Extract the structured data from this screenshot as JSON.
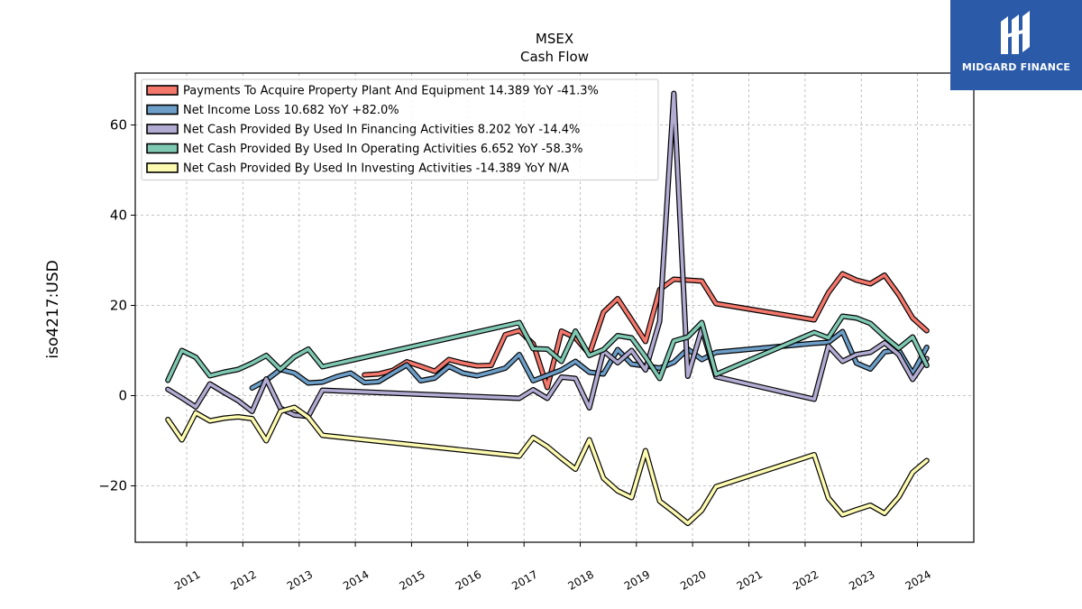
{
  "logo": {
    "text": "MIDGARD FINANCE",
    "icon": "midgard-mark-icon",
    "background": "#2a5aa8"
  },
  "chart_data": {
    "type": "line",
    "title": "MSEX",
    "subtitle": "Cash Flow",
    "ylabel": "iso4217:USD",
    "xlabel": "",
    "xlim": [
      "2010-02-01",
      "2025-01-01"
    ],
    "ylim": [
      -32.5,
      71.5
    ],
    "yticks": [
      -20,
      0,
      20,
      40,
      60
    ],
    "ytick_labels": [
      "−20",
      "0",
      "20",
      "40",
      "60"
    ],
    "xticks": [
      "2011-01-01",
      "2012-01-01",
      "2013-01-01",
      "2014-01-01",
      "2015-01-01",
      "2016-01-01",
      "2017-01-01",
      "2018-01-01",
      "2019-01-01",
      "2020-01-01",
      "2021-01-01",
      "2022-01-01",
      "2023-01-01",
      "2024-01-01"
    ],
    "xtick_labels": [
      "2011",
      "2012",
      "2013",
      "2014",
      "2015",
      "2016",
      "2017",
      "2018",
      "2019",
      "2020",
      "2021",
      "2022",
      "2023",
      "2024"
    ],
    "grid": true,
    "legend_position": "top-left",
    "series": [
      {
        "name": "Payments To Acquire Property Plant And Equipment  14.389 YoY -41.3%",
        "color": "#f4776c",
        "points": [
          [
            "2014-03-01",
            4.6
          ],
          [
            "2014-06-01",
            4.8
          ],
          [
            "2014-09-01",
            5.6
          ],
          [
            "2014-12-01",
            7.5
          ],
          [
            "2015-03-01",
            6.5
          ],
          [
            "2015-06-01",
            5.4
          ],
          [
            "2015-09-01",
            8.0
          ],
          [
            "2015-12-01",
            7.2
          ],
          [
            "2016-03-01",
            6.6
          ],
          [
            "2016-06-01",
            6.7
          ],
          [
            "2016-09-01",
            13.5
          ],
          [
            "2016-12-01",
            14.4
          ],
          [
            "2017-03-01",
            11.5
          ],
          [
            "2017-06-01",
            1.8
          ],
          [
            "2017-09-01",
            14.3
          ],
          [
            "2017-12-01",
            12.8
          ],
          [
            "2018-03-01",
            9.2
          ],
          [
            "2018-06-01",
            18.5
          ],
          [
            "2018-09-01",
            21.5
          ],
          [
            "2018-12-01",
            16.8
          ],
          [
            "2019-03-01",
            12.0
          ],
          [
            "2019-06-01",
            23.5
          ],
          [
            "2019-09-01",
            25.8
          ],
          [
            "2019-12-01",
            25.6
          ],
          [
            "2020-03-01",
            25.4
          ],
          [
            "2020-06-01",
            20.4
          ],
          [
            "2022-03-01",
            16.8
          ],
          [
            "2022-06-01",
            22.8
          ],
          [
            "2022-09-01",
            27.0
          ],
          [
            "2022-12-01",
            25.6
          ],
          [
            "2023-03-01",
            24.8
          ],
          [
            "2023-06-01",
            26.7
          ],
          [
            "2023-09-01",
            22.4
          ],
          [
            "2023-12-01",
            17.2
          ],
          [
            "2024-03-01",
            14.4
          ]
        ]
      },
      {
        "name": "Net Income Loss  10.682 YoY +82.0%",
        "color": "#6c9ec8",
        "points": [
          [
            "2012-03-01",
            1.7
          ],
          [
            "2012-06-01",
            3.4
          ],
          [
            "2012-09-01",
            5.8
          ],
          [
            "2012-12-01",
            5.0
          ],
          [
            "2013-03-01",
            2.8
          ],
          [
            "2013-06-01",
            3.0
          ],
          [
            "2013-09-01",
            4.2
          ],
          [
            "2013-12-01",
            5.0
          ],
          [
            "2014-03-01",
            2.9
          ],
          [
            "2014-06-01",
            3.1
          ],
          [
            "2014-09-01",
            5.0
          ],
          [
            "2014-12-01",
            6.8
          ],
          [
            "2015-03-01",
            3.3
          ],
          [
            "2015-06-01",
            3.9
          ],
          [
            "2015-09-01",
            6.5
          ],
          [
            "2015-12-01",
            5.0
          ],
          [
            "2016-03-01",
            4.4
          ],
          [
            "2016-06-01",
            5.2
          ],
          [
            "2016-09-01",
            6.1
          ],
          [
            "2016-12-01",
            9.1
          ],
          [
            "2017-03-01",
            3.3
          ],
          [
            "2017-06-01",
            4.5
          ],
          [
            "2017-09-01",
            5.7
          ],
          [
            "2017-12-01",
            7.6
          ],
          [
            "2018-03-01",
            5.2
          ],
          [
            "2018-06-01",
            4.8
          ],
          [
            "2018-09-01",
            10.2
          ],
          [
            "2018-12-01",
            7.0
          ],
          [
            "2019-03-01",
            6.6
          ],
          [
            "2019-06-01",
            6.1
          ],
          [
            "2019-09-01",
            7.4
          ],
          [
            "2019-12-01",
            10.3
          ],
          [
            "2020-03-01",
            8.0
          ],
          [
            "2020-06-01",
            9.6
          ],
          [
            "2022-03-01",
            11.6
          ],
          [
            "2022-06-01",
            11.8
          ],
          [
            "2022-09-01",
            14.2
          ],
          [
            "2022-12-01",
            7.2
          ],
          [
            "2023-03-01",
            5.9
          ],
          [
            "2023-06-01",
            9.7
          ],
          [
            "2023-09-01",
            10.1
          ],
          [
            "2023-12-01",
            4.9
          ],
          [
            "2024-03-01",
            10.7
          ]
        ]
      },
      {
        "name": "Net Cash Provided By Used In Financing Activities  8.202 YoY -14.4%",
        "color": "#b2abd2",
        "points": [
          [
            "2010-09-01",
            1.4
          ],
          [
            "2010-12-01",
            -0.5
          ],
          [
            "2011-03-01",
            -2.5
          ],
          [
            "2011-06-01",
            2.6
          ],
          [
            "2011-09-01",
            0.7
          ],
          [
            "2011-12-01",
            -1.1
          ],
          [
            "2012-03-01",
            -3.5
          ],
          [
            "2012-06-01",
            3.7
          ],
          [
            "2012-09-01",
            -2.8
          ],
          [
            "2012-12-01",
            -4.3
          ],
          [
            "2013-03-01",
            -4.6
          ],
          [
            "2013-06-01",
            1.2
          ],
          [
            "2016-12-01",
            -0.6
          ],
          [
            "2017-03-01",
            1.3
          ],
          [
            "2017-06-01",
            -0.6
          ],
          [
            "2017-09-01",
            4.1
          ],
          [
            "2017-12-01",
            3.8
          ],
          [
            "2018-03-01",
            -2.7
          ],
          [
            "2018-06-01",
            9.9
          ],
          [
            "2018-09-01",
            7.3
          ],
          [
            "2018-12-01",
            10.0
          ],
          [
            "2019-03-01",
            5.7
          ],
          [
            "2019-06-01",
            16.5
          ],
          [
            "2019-09-01",
            67.0
          ],
          [
            "2019-12-01",
            4.3
          ],
          [
            "2020-03-01",
            14.8
          ],
          [
            "2020-06-01",
            4.2
          ],
          [
            "2022-03-01",
            -0.8
          ],
          [
            "2022-06-01",
            11.0
          ],
          [
            "2022-09-01",
            7.6
          ],
          [
            "2022-12-01",
            9.1
          ],
          [
            "2023-03-01",
            9.6
          ],
          [
            "2023-06-01",
            11.7
          ],
          [
            "2023-09-01",
            9.1
          ],
          [
            "2023-12-01",
            3.6
          ],
          [
            "2024-03-01",
            8.2
          ]
        ]
      },
      {
        "name": "Net Cash Provided By Used In Operating Activities  6.652 YoY -58.3%",
        "color": "#7fc8b2",
        "points": [
          [
            "2010-09-01",
            3.4
          ],
          [
            "2010-12-01",
            10.0
          ],
          [
            "2011-03-01",
            8.5
          ],
          [
            "2011-06-01",
            4.4
          ],
          [
            "2011-09-01",
            5.2
          ],
          [
            "2011-12-01",
            5.8
          ],
          [
            "2012-03-01",
            7.2
          ],
          [
            "2012-06-01",
            8.9
          ],
          [
            "2012-09-01",
            5.8
          ],
          [
            "2012-12-01",
            8.6
          ],
          [
            "2013-03-01",
            10.3
          ],
          [
            "2013-06-01",
            6.4
          ],
          [
            "2016-12-01",
            16.2
          ],
          [
            "2017-03-01",
            10.4
          ],
          [
            "2017-06-01",
            10.3
          ],
          [
            "2017-09-01",
            7.6
          ],
          [
            "2017-12-01",
            14.3
          ],
          [
            "2018-03-01",
            8.9
          ],
          [
            "2018-06-01",
            10.2
          ],
          [
            "2018-09-01",
            13.3
          ],
          [
            "2018-12-01",
            12.8
          ],
          [
            "2019-03-01",
            8.6
          ],
          [
            "2019-06-01",
            3.8
          ],
          [
            "2019-09-01",
            12.1
          ],
          [
            "2019-12-01",
            13.0
          ],
          [
            "2020-03-01",
            16.2
          ],
          [
            "2020-06-01",
            4.7
          ],
          [
            "2022-03-01",
            14.0
          ],
          [
            "2022-06-01",
            12.8
          ],
          [
            "2022-09-01",
            17.6
          ],
          [
            "2022-12-01",
            17.2
          ],
          [
            "2023-03-01",
            16.0
          ],
          [
            "2023-06-01",
            13.1
          ],
          [
            "2023-09-01",
            10.5
          ],
          [
            "2023-12-01",
            13.0
          ],
          [
            "2024-03-01",
            6.7
          ]
        ]
      },
      {
        "name": "Net Cash Provided By Used In Investing Activities  -14.389 YoY N/A",
        "color": "#fdfbb0",
        "points": [
          [
            "2010-09-01",
            -5.3
          ],
          [
            "2010-12-01",
            -9.8
          ],
          [
            "2011-03-01",
            -3.8
          ],
          [
            "2011-06-01",
            -5.6
          ],
          [
            "2011-09-01",
            -5.0
          ],
          [
            "2011-12-01",
            -4.7
          ],
          [
            "2012-03-01",
            -5.1
          ],
          [
            "2012-06-01",
            -10.0
          ],
          [
            "2012-09-01",
            -3.5
          ],
          [
            "2012-12-01",
            -2.6
          ],
          [
            "2013-03-01",
            -4.8
          ],
          [
            "2013-06-01",
            -8.8
          ],
          [
            "2016-12-01",
            -13.4
          ],
          [
            "2017-03-01",
            -9.3
          ],
          [
            "2017-06-01",
            -11.3
          ],
          [
            "2017-09-01",
            -13.9
          ],
          [
            "2017-12-01",
            -16.3
          ],
          [
            "2018-03-01",
            -9.8
          ],
          [
            "2018-06-01",
            -18.3
          ],
          [
            "2018-09-01",
            -21.1
          ],
          [
            "2018-12-01",
            -22.6
          ],
          [
            "2019-03-01",
            -12.2
          ],
          [
            "2019-06-01",
            -23.4
          ],
          [
            "2019-09-01",
            -25.8
          ],
          [
            "2019-12-01",
            -28.3
          ],
          [
            "2020-03-01",
            -25.4
          ],
          [
            "2020-06-01",
            -20.2
          ],
          [
            "2022-03-01",
            -13.1
          ],
          [
            "2022-06-01",
            -22.7
          ],
          [
            "2022-09-01",
            -26.4
          ],
          [
            "2022-12-01",
            -25.3
          ],
          [
            "2023-03-01",
            -24.3
          ],
          [
            "2023-06-01",
            -26.1
          ],
          [
            "2023-09-01",
            -22.5
          ],
          [
            "2023-12-01",
            -17.0
          ],
          [
            "2024-03-01",
            -14.4
          ]
        ]
      }
    ]
  }
}
